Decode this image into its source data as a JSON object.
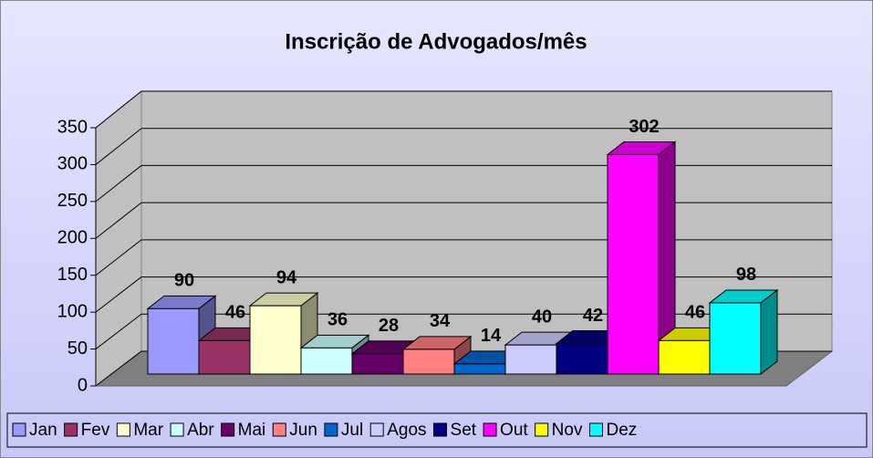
{
  "chart_data": {
    "type": "bar",
    "title": "Inscrição de Advogados/mês",
    "categories": [
      "Jan",
      "Fev",
      "Mar",
      "Abr",
      "Mai",
      "Jun",
      "Jul",
      "Agos",
      "Set",
      "Out",
      "Nov",
      "Dez"
    ],
    "values": [
      90,
      46,
      94,
      36,
      28,
      34,
      14,
      40,
      42,
      302,
      46,
      98
    ],
    "colors": [
      "#9999ff",
      "#993366",
      "#ffffcc",
      "#ccffff",
      "#660066",
      "#ff8080",
      "#0066cc",
      "#ccccff",
      "#000080",
      "#ff00ff",
      "#ffff00",
      "#00ffff"
    ],
    "ylim": [
      0,
      350
    ],
    "yticks": [
      0,
      50,
      100,
      150,
      200,
      250,
      300,
      350
    ],
    "grid": true,
    "legend": "bottom"
  }
}
